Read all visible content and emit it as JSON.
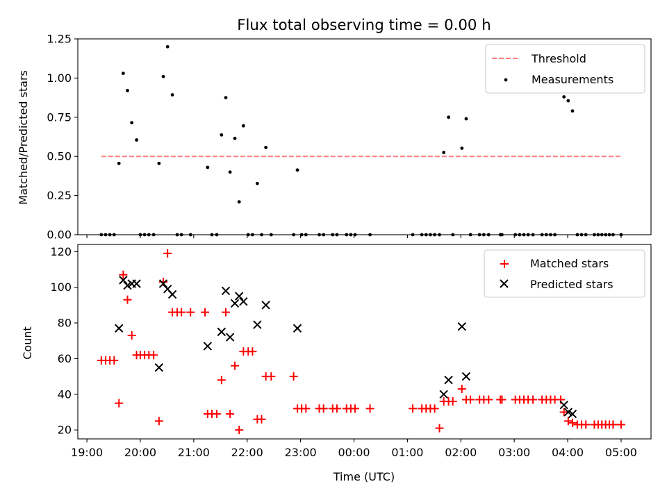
{
  "chart_data": [
    {
      "type": "scatter",
      "title": "Flux total observing time = 0.00 h",
      "xlabel": "",
      "ylabel": "Matched/Predicted stars",
      "xlim": [
        18.83,
        29.56
      ],
      "ylim": [
        0,
        1.25
      ],
      "yticks": [
        0.0,
        0.25,
        0.5,
        0.75,
        1.0,
        1.25
      ],
      "ytick_labels": [
        "0.00",
        "0.25",
        "0.50",
        "0.75",
        "1.00",
        "1.25"
      ],
      "xticks": [
        19,
        20,
        21,
        22,
        23,
        24,
        25,
        26,
        27,
        28,
        29
      ],
      "legend_position": "top-right",
      "series": [
        {
          "name": "Threshold",
          "kind": "dashed-line",
          "color": "#ff7f7f",
          "x": [
            19.27,
            29.0
          ],
          "y": [
            0.5,
            0.5
          ]
        },
        {
          "name": "Measurements",
          "kind": "dot",
          "color": "#000000",
          "points": [
            [
              19.27,
              0
            ],
            [
              19.35,
              0
            ],
            [
              19.43,
              0
            ],
            [
              19.51,
              0
            ],
            [
              19.6,
              0.455
            ],
            [
              19.68,
              1.03
            ],
            [
              19.76,
              0.92
            ],
            [
              19.84,
              0.715
            ],
            [
              19.93,
              0.605
            ],
            [
              20.0,
              0
            ],
            [
              20.08,
              0
            ],
            [
              20.16,
              0
            ],
            [
              20.25,
              0
            ],
            [
              20.35,
              0.455
            ],
            [
              20.43,
              1.01
            ],
            [
              20.51,
              1.2
            ],
            [
              20.6,
              0.893
            ],
            [
              20.69,
              0
            ],
            [
              20.77,
              0
            ],
            [
              20.94,
              0
            ],
            [
              21.26,
              0.43
            ],
            [
              21.34,
              0
            ],
            [
              21.43,
              0
            ],
            [
              21.52,
              0.637
            ],
            [
              21.6,
              0.875
            ],
            [
              21.68,
              0.4
            ],
            [
              21.77,
              0.615
            ],
            [
              21.85,
              0.21
            ],
            [
              21.93,
              0.695
            ],
            [
              22.02,
              0
            ],
            [
              22.1,
              0
            ],
            [
              22.19,
              0.327
            ],
            [
              22.27,
              0
            ],
            [
              22.35,
              0.557
            ],
            [
              22.45,
              0
            ],
            [
              22.87,
              0
            ],
            [
              22.94,
              0.413
            ],
            [
              23.02,
              0
            ],
            [
              23.1,
              0
            ],
            [
              23.35,
              0
            ],
            [
              23.43,
              0
            ],
            [
              23.6,
              0
            ],
            [
              23.68,
              0
            ],
            [
              23.86,
              0
            ],
            [
              23.94,
              0
            ],
            [
              24.02,
              0
            ],
            [
              24.3,
              0
            ],
            [
              25.1,
              0
            ],
            [
              25.27,
              0
            ],
            [
              25.35,
              0
            ],
            [
              25.43,
              0
            ],
            [
              25.51,
              0
            ],
            [
              25.6,
              0
            ],
            [
              25.68,
              0.525
            ],
            [
              25.77,
              0.75
            ],
            [
              25.85,
              0
            ],
            [
              26.02,
              0.552
            ],
            [
              26.1,
              0.74
            ],
            [
              26.18,
              0
            ],
            [
              26.35,
              0
            ],
            [
              26.43,
              0
            ],
            [
              26.52,
              0
            ],
            [
              26.74,
              0
            ],
            [
              26.77,
              0
            ],
            [
              27.02,
              0
            ],
            [
              27.1,
              0
            ],
            [
              27.18,
              0
            ],
            [
              27.26,
              0
            ],
            [
              27.35,
              0
            ],
            [
              27.52,
              0
            ],
            [
              27.6,
              0
            ],
            [
              27.68,
              0
            ],
            [
              27.76,
              0
            ],
            [
              27.93,
              0.88
            ],
            [
              28.01,
              0.855
            ],
            [
              28.09,
              0.79
            ],
            [
              28.18,
              0
            ],
            [
              28.26,
              0
            ],
            [
              28.34,
              0
            ],
            [
              28.5,
              0
            ],
            [
              28.57,
              0
            ],
            [
              28.64,
              0
            ],
            [
              28.71,
              0
            ],
            [
              28.78,
              0
            ],
            [
              28.85,
              0
            ],
            [
              29.0,
              0
            ]
          ]
        }
      ]
    },
    {
      "type": "scatter",
      "title": "",
      "xlabel": "Time (UTC)",
      "ylabel": "Count",
      "xlim": [
        18.83,
        29.56
      ],
      "ylim": [
        15,
        124
      ],
      "yticks": [
        20,
        40,
        60,
        80,
        100,
        120
      ],
      "ytick_labels": [
        "20",
        "40",
        "60",
        "80",
        "100",
        "120"
      ],
      "xticks": [
        19,
        20,
        21,
        22,
        23,
        24,
        25,
        26,
        27,
        28,
        29
      ],
      "xtick_labels": [
        "19:00",
        "20:00",
        "21:00",
        "22:00",
        "23:00",
        "00:00",
        "01:00",
        "02:00",
        "03:00",
        "04:00",
        "05:00"
      ],
      "legend_position": "top-right",
      "series": [
        {
          "name": "Matched stars",
          "kind": "plus",
          "color": "#ff0000",
          "points": [
            [
              19.27,
              59
            ],
            [
              19.35,
              59
            ],
            [
              19.43,
              59
            ],
            [
              19.51,
              59
            ],
            [
              19.6,
              35
            ],
            [
              19.68,
              107
            ],
            [
              19.76,
              93
            ],
            [
              19.84,
              73
            ],
            [
              19.93,
              62
            ],
            [
              20.0,
              62
            ],
            [
              20.08,
              62
            ],
            [
              20.16,
              62
            ],
            [
              20.25,
              62
            ],
            [
              20.35,
              25
            ],
            [
              20.43,
              103
            ],
            [
              20.51,
              119
            ],
            [
              20.6,
              86
            ],
            [
              20.69,
              86
            ],
            [
              20.77,
              86
            ],
            [
              20.94,
              86
            ],
            [
              21.21,
              86
            ],
            [
              21.26,
              29
            ],
            [
              21.34,
              29
            ],
            [
              21.43,
              29
            ],
            [
              21.52,
              48
            ],
            [
              21.6,
              86
            ],
            [
              21.68,
              29
            ],
            [
              21.77,
              56
            ],
            [
              21.85,
              20
            ],
            [
              21.93,
              64
            ],
            [
              22.02,
              64
            ],
            [
              22.1,
              64
            ],
            [
              22.19,
              26
            ],
            [
              22.27,
              26
            ],
            [
              22.35,
              50
            ],
            [
              22.45,
              50
            ],
            [
              22.87,
              50
            ],
            [
              22.94,
              32
            ],
            [
              23.02,
              32
            ],
            [
              23.1,
              32
            ],
            [
              23.35,
              32
            ],
            [
              23.43,
              32
            ],
            [
              23.6,
              32
            ],
            [
              23.68,
              32
            ],
            [
              23.86,
              32
            ],
            [
              23.94,
              32
            ],
            [
              24.02,
              32
            ],
            [
              24.3,
              32
            ],
            [
              25.1,
              32
            ],
            [
              25.27,
              32
            ],
            [
              25.35,
              32
            ],
            [
              25.43,
              32
            ],
            [
              25.51,
              32
            ],
            [
              25.6,
              21
            ],
            [
              25.68,
              36
            ],
            [
              25.77,
              36
            ],
            [
              25.85,
              36
            ],
            [
              26.02,
              43
            ],
            [
              26.1,
              37
            ],
            [
              26.18,
              37
            ],
            [
              26.35,
              37
            ],
            [
              26.43,
              37
            ],
            [
              26.52,
              37
            ],
            [
              26.74,
              37
            ],
            [
              26.77,
              37
            ],
            [
              27.02,
              37
            ],
            [
              27.1,
              37
            ],
            [
              27.18,
              37
            ],
            [
              27.26,
              37
            ],
            [
              27.35,
              37
            ],
            [
              27.52,
              37
            ],
            [
              27.6,
              37
            ],
            [
              27.68,
              37
            ],
            [
              27.76,
              37
            ],
            [
              27.87,
              37
            ],
            [
              27.93,
              30
            ],
            [
              28.01,
              25
            ],
            [
              28.09,
              24
            ],
            [
              28.18,
              23
            ],
            [
              28.26,
              23
            ],
            [
              28.34,
              23
            ],
            [
              28.5,
              23
            ],
            [
              28.57,
              23
            ],
            [
              28.64,
              23
            ],
            [
              28.71,
              23
            ],
            [
              28.78,
              23
            ],
            [
              28.85,
              23
            ],
            [
              29.0,
              23
            ]
          ]
        },
        {
          "name": "Predicted stars",
          "kind": "cross",
          "color": "#000000",
          "points": [
            [
              19.6,
              77
            ],
            [
              19.68,
              104
            ],
            [
              19.76,
              101
            ],
            [
              19.84,
              102
            ],
            [
              19.93,
              102
            ],
            [
              20.35,
              55
            ],
            [
              20.43,
              102
            ],
            [
              20.51,
              99
            ],
            [
              20.6,
              96
            ],
            [
              21.26,
              67
            ],
            [
              21.52,
              75
            ],
            [
              21.6,
              98
            ],
            [
              21.68,
              72
            ],
            [
              21.77,
              91
            ],
            [
              21.85,
              95
            ],
            [
              21.93,
              92
            ],
            [
              22.19,
              79
            ],
            [
              22.35,
              90
            ],
            [
              22.94,
              77
            ],
            [
              25.68,
              40
            ],
            [
              25.77,
              48
            ],
            [
              26.02,
              78
            ],
            [
              26.1,
              50
            ],
            [
              27.93,
              34
            ],
            [
              28.01,
              30
            ],
            [
              28.09,
              29
            ]
          ]
        }
      ]
    }
  ]
}
